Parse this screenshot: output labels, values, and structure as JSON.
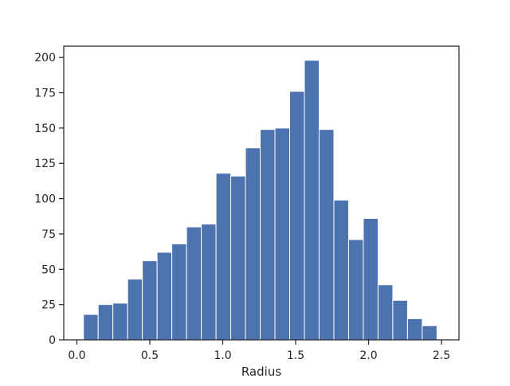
{
  "chart_data": {
    "type": "bar",
    "subtype": "histogram",
    "title": "",
    "xlabel": "Radius",
    "ylabel": "",
    "xlim": [
      -0.09,
      2.62
    ],
    "ylim": [
      0,
      208
    ],
    "x_ticks": [
      0.0,
      0.5,
      1.0,
      1.5,
      2.0,
      2.5
    ],
    "x_tick_labels": [
      "0.0",
      "0.5",
      "1.0",
      "1.5",
      "2.0",
      "2.5"
    ],
    "y_ticks": [
      0,
      25,
      50,
      75,
      100,
      125,
      150,
      175,
      200
    ],
    "y_tick_labels": [
      "0",
      "25",
      "50",
      "75",
      "100",
      "125",
      "150",
      "175",
      "200"
    ],
    "grid": false,
    "bar_color": "#4c72b0",
    "bin_edges": [
      0.045,
      0.146,
      0.247,
      0.348,
      0.449,
      0.55,
      0.651,
      0.752,
      0.853,
      0.954,
      1.055,
      1.156,
      1.257,
      1.358,
      1.459,
      1.56,
      1.661,
      1.762,
      1.863,
      1.964,
      2.065,
      2.166,
      2.267,
      2.368,
      2.469
    ],
    "counts": [
      18,
      25,
      26,
      43,
      56,
      62,
      68,
      80,
      82,
      118,
      116,
      136,
      149,
      150,
      176,
      198,
      149,
      99,
      71,
      86,
      39,
      28,
      15,
      10
    ]
  }
}
